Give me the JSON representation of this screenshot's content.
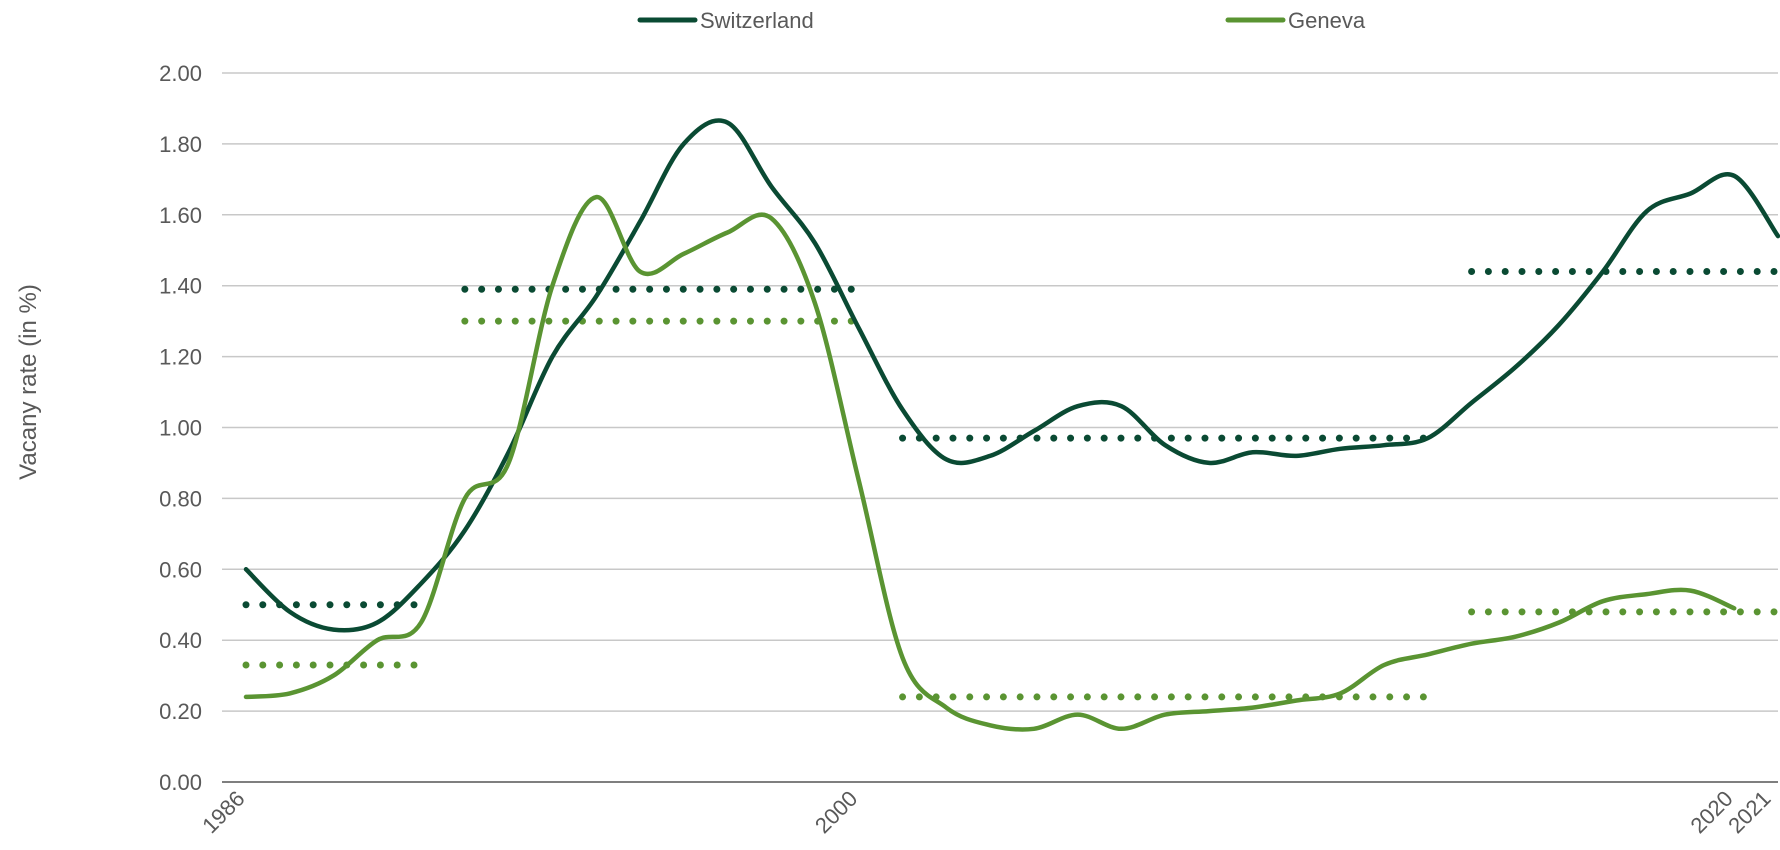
{
  "chart_data": {
    "type": "line",
    "ylabel": "Vacany rate (in %)",
    "xlabel": "",
    "title": "",
    "ylim": [
      0,
      2
    ],
    "yticks": [
      "0.00",
      "0.20",
      "0.40",
      "0.60",
      "0.80",
      "1.00",
      "1.20",
      "1.40",
      "1.60",
      "1.80",
      "2.00"
    ],
    "xlim": [
      1986,
      2021
    ],
    "xtick_labels": [
      {
        "x": 1986,
        "label": "1986"
      },
      {
        "x": 2000,
        "label": "2000"
      },
      {
        "x": 2020,
        "label": "2020"
      },
      {
        "x": 2021,
        "label": "2021"
      }
    ],
    "grid": true,
    "legend_position": "top",
    "series": [
      {
        "name": "Switzerland",
        "color": "#0a4a33",
        "x": [
          1986,
          1987,
          1988,
          1989,
          1990,
          1991,
          1992,
          1993,
          1994,
          1995,
          1996,
          1997,
          1998,
          1999,
          2000,
          2001,
          2002,
          2003,
          2004,
          2005,
          2006,
          2007,
          2008,
          2009,
          2010,
          2011,
          2012,
          2013,
          2014,
          2015,
          2016,
          2017,
          2018,
          2019,
          2020,
          2021
        ],
        "values": [
          0.6,
          0.48,
          0.43,
          0.45,
          0.56,
          0.71,
          0.93,
          1.2,
          1.37,
          1.58,
          1.8,
          1.86,
          1.68,
          1.52,
          1.28,
          1.05,
          0.91,
          0.92,
          0.99,
          1.06,
          1.06,
          0.95,
          0.9,
          0.93,
          0.92,
          0.94,
          0.95,
          0.97,
          1.07,
          1.17,
          1.29,
          1.44,
          1.61,
          1.66,
          1.71,
          1.54
        ]
      },
      {
        "name": "Geneva",
        "color": "#5a9432",
        "x": [
          1986,
          1987,
          1988,
          1989,
          1990,
          1991,
          1992,
          1993,
          1994,
          1995,
          1996,
          1997,
          1998,
          1999,
          2000,
          2001,
          2002,
          2003,
          2004,
          2005,
          2006,
          2007,
          2008,
          2009,
          2010,
          2011,
          2012,
          2013,
          2014,
          2015,
          2016,
          2017,
          2018,
          2019,
          2020
        ],
        "values": [
          0.24,
          0.25,
          0.3,
          0.4,
          0.45,
          0.8,
          0.9,
          1.4,
          1.65,
          1.44,
          1.49,
          1.55,
          1.59,
          1.35,
          0.85,
          0.35,
          0.21,
          0.16,
          0.15,
          0.19,
          0.15,
          0.19,
          0.2,
          0.21,
          0.23,
          0.25,
          0.33,
          0.36,
          0.39,
          0.41,
          0.45,
          0.51,
          0.53,
          0.54,
          0.49
        ]
      }
    ],
    "averages": [
      {
        "series": "Switzerland",
        "x_start": 1986,
        "x_end": 1990,
        "value": 0.5
      },
      {
        "series": "Switzerland",
        "x_start": 1991,
        "x_end": 2000,
        "value": 1.39
      },
      {
        "series": "Switzerland",
        "x_start": 2001,
        "x_end": 2013,
        "value": 0.97
      },
      {
        "series": "Switzerland",
        "x_start": 2014,
        "x_end": 2021,
        "value": 1.44
      },
      {
        "series": "Geneva",
        "x_start": 1986,
        "x_end": 1990,
        "value": 0.33
      },
      {
        "series": "Geneva",
        "x_start": 1991,
        "x_end": 2000,
        "value": 1.3
      },
      {
        "series": "Geneva",
        "x_start": 2001,
        "x_end": 2013,
        "value": 0.24
      },
      {
        "series": "Geneva",
        "x_start": 2014,
        "x_end": 2021,
        "value": 0.48
      }
    ]
  }
}
